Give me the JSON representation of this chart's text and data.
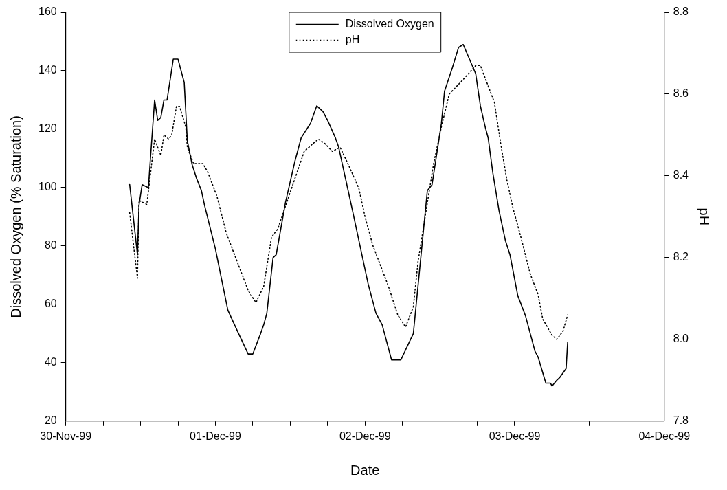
{
  "chart_data": {
    "type": "line",
    "xlabel": "Date",
    "ylabel": "Dissolved Oxygen (% Saturation)",
    "y2label": "pH",
    "xlim": [
      "1999-11-30",
      "1999-12-04"
    ],
    "xticks": [
      {
        "value": "1999-11-30",
        "label": "30-Nov-99"
      },
      {
        "value": "1999-11-30T06:00",
        "label": null
      },
      {
        "value": "1999-11-30T12:00",
        "label": null
      },
      {
        "value": "1999-11-30T18:00",
        "label": null
      },
      {
        "value": "1999-12-01",
        "label": "01-Dec-99"
      },
      {
        "value": "1999-12-01T06:00",
        "label": null
      },
      {
        "value": "1999-12-01T12:00",
        "label": null
      },
      {
        "value": "1999-12-01T18:00",
        "label": null
      },
      {
        "value": "1999-12-02",
        "label": "02-Dec-99"
      },
      {
        "value": "1999-12-02T06:00",
        "label": null
      },
      {
        "value": "1999-12-02T12:00",
        "label": null
      },
      {
        "value": "1999-12-02T18:00",
        "label": null
      },
      {
        "value": "1999-12-03",
        "label": "03-Dec-99"
      },
      {
        "value": "1999-12-03T06:00",
        "label": null
      },
      {
        "value": "1999-12-03T12:00",
        "label": null
      },
      {
        "value": "1999-12-03T18:00",
        "label": null
      },
      {
        "value": "1999-12-04",
        "label": "04-Dec-99"
      }
    ],
    "ylim": [
      20,
      160
    ],
    "yticks": [
      20,
      40,
      60,
      80,
      100,
      120,
      140,
      160
    ],
    "y2lim": [
      7.8,
      8.8
    ],
    "y2ticks": [
      7.8,
      {
        "value": 8,
        "label": "8.0"
      },
      8.2,
      8.4,
      8.6,
      8.8
    ],
    "grid": false,
    "legend": "top",
    "marker": "none",
    "series": [
      {
        "name": "Dissolved Oxygen",
        "color": "#000000",
        "line_style": "solid",
        "x": [
          "1999-11-30T10:15",
          "1999-11-30T11:30",
          "1999-11-30T11:45",
          "1999-11-30T12:15",
          "1999-11-30T13:15",
          "1999-11-30T14:15",
          "1999-11-30T14:45",
          "1999-11-30T15:15",
          "1999-11-30T15:45",
          "1999-11-30T16:15",
          "1999-11-30T17:15",
          "1999-11-30T18:00",
          "1999-11-30T19:00",
          "1999-11-30T19:30",
          "1999-11-30T20:15",
          "1999-11-30T21:00",
          "1999-11-30T21:45",
          "1999-11-30T22:15",
          "1999-12-01T00:00",
          "1999-12-01T02:00",
          "1999-12-01T03:30",
          "1999-12-01T05:15",
          "1999-12-01T06:00",
          "1999-12-01T07:15",
          "1999-12-01T07:45",
          "1999-12-01T08:15",
          "1999-12-01T09:15",
          "1999-12-01T09:45",
          "1999-12-01T11:15",
          "1999-12-01T12:45",
          "1999-12-01T13:45",
          "1999-12-01T15:15",
          "1999-12-01T16:15",
          "1999-12-01T17:15",
          "1999-12-01T18:00",
          "1999-12-01T19:15",
          "1999-12-01T19:45",
          "1999-12-01T22:00",
          "1999-12-02T00:30",
          "1999-12-02T01:45",
          "1999-12-02T02:45",
          "1999-12-02T03:15",
          "1999-12-02T04:15",
          "1999-12-02T05:00",
          "1999-12-02T05:45",
          "1999-12-02T07:45",
          "1999-12-02T10:00",
          "1999-12-02T10:45",
          "1999-12-02T12:15",
          "1999-12-02T12:45",
          "1999-12-02T14:00",
          "1999-12-02T15:00",
          "1999-12-02T15:45",
          "1999-12-02T17:45",
          "1999-12-02T18:30",
          "1999-12-02T19:15",
          "1999-12-02T19:45",
          "1999-12-02T20:30",
          "1999-12-02T21:30",
          "1999-12-02T22:30",
          "1999-12-02T23:15",
          "1999-12-03T00:30",
          "1999-12-03T01:45",
          "1999-12-03T03:15",
          "1999-12-03T03:45",
          "1999-12-03T05:00",
          "1999-12-03T05:45",
          "1999-12-03T06:00",
          "1999-12-03T06:45",
          "1999-12-03T07:15",
          "1999-12-03T08:15",
          "1999-12-03T08:30"
        ],
        "values": [
          101,
          77,
          94,
          101,
          100,
          130,
          123,
          124,
          130,
          130,
          144,
          144,
          136,
          116,
          108,
          103,
          99,
          94,
          79,
          58,
          51,
          43,
          43,
          50,
          53,
          57,
          76,
          77,
          95,
          109,
          117,
          122,
          128,
          126,
          123,
          117,
          114,
          92,
          67,
          57,
          53,
          49,
          41,
          41,
          41,
          50,
          99,
          101,
          122,
          133,
          141,
          148,
          149,
          139,
          128,
          121,
          117,
          105,
          92,
          82,
          77,
          63,
          56,
          44,
          42,
          33,
          33,
          32,
          34,
          35,
          38,
          47
        ]
      },
      {
        "name": "pH",
        "color": "#000000",
        "line_style": "dotted",
        "axis": "y2",
        "x": [
          "1999-11-30T10:15",
          "1999-11-30T11:30",
          "1999-11-30T11:45",
          "1999-11-30T13:00",
          "1999-11-30T14:15",
          "1999-11-30T14:45",
          "1999-11-30T15:15",
          "1999-11-30T15:45",
          "1999-11-30T16:30",
          "1999-11-30T17:00",
          "1999-11-30T17:45",
          "1999-11-30T18:15",
          "1999-11-30T19:15",
          "1999-11-30T19:30",
          "1999-11-30T20:30",
          "1999-11-30T22:00",
          "1999-11-30T22:45",
          "1999-12-01T00:15",
          "1999-12-01T01:45",
          "1999-12-01T03:30",
          "1999-12-01T05:15",
          "1999-12-01T06:30",
          "1999-12-01T07:45",
          "1999-12-01T09:00",
          "1999-12-01T10:00",
          "1999-12-01T12:00",
          "1999-12-01T14:15",
          "1999-12-01T16:30",
          "1999-12-01T17:30",
          "1999-12-01T18:45",
          "1999-12-01T20:00",
          "1999-12-01T21:15",
          "1999-12-01T23:00",
          "1999-12-02T00:00",
          "1999-12-02T01:15",
          "1999-12-02T02:30",
          "1999-12-02T03:45",
          "1999-12-02T05:15",
          "1999-12-02T06:30",
          "1999-12-02T07:45",
          "1999-12-02T08:30",
          "1999-12-02T09:45",
          "1999-12-02T11:00",
          "1999-12-02T12:15",
          "1999-12-02T13:30",
          "1999-12-02T16:00",
          "1999-12-02T17:45",
          "1999-12-02T18:30",
          "1999-12-02T19:30",
          "1999-12-02T20:45",
          "1999-12-02T21:45",
          "1999-12-02T22:45",
          "1999-12-02T23:45",
          "1999-12-03T01:00",
          "1999-12-03T02:30",
          "1999-12-03T03:45",
          "1999-12-03T04:30",
          "1999-12-03T06:00",
          "1999-12-03T06:45",
          "1999-12-03T07:45",
          "1999-12-03T08:30"
        ],
        "values": [
          8.31,
          8.15,
          8.34,
          8.33,
          8.49,
          8.47,
          8.45,
          8.5,
          8.49,
          8.5,
          8.57,
          8.57,
          8.52,
          8.47,
          8.43,
          8.43,
          8.41,
          8.35,
          8.26,
          8.19,
          8.12,
          8.09,
          8.13,
          8.25,
          8.27,
          8.36,
          8.46,
          8.49,
          8.48,
          8.46,
          8.47,
          8.43,
          8.37,
          8.3,
          8.23,
          8.18,
          8.13,
          8.06,
          8.03,
          8.08,
          8.19,
          8.31,
          8.43,
          8.52,
          8.6,
          8.64,
          8.67,
          8.67,
          8.63,
          8.58,
          8.48,
          8.39,
          8.32,
          8.25,
          8.16,
          8.11,
          8.05,
          8.01,
          8,
          8.02,
          8.06
        ]
      }
    ]
  }
}
